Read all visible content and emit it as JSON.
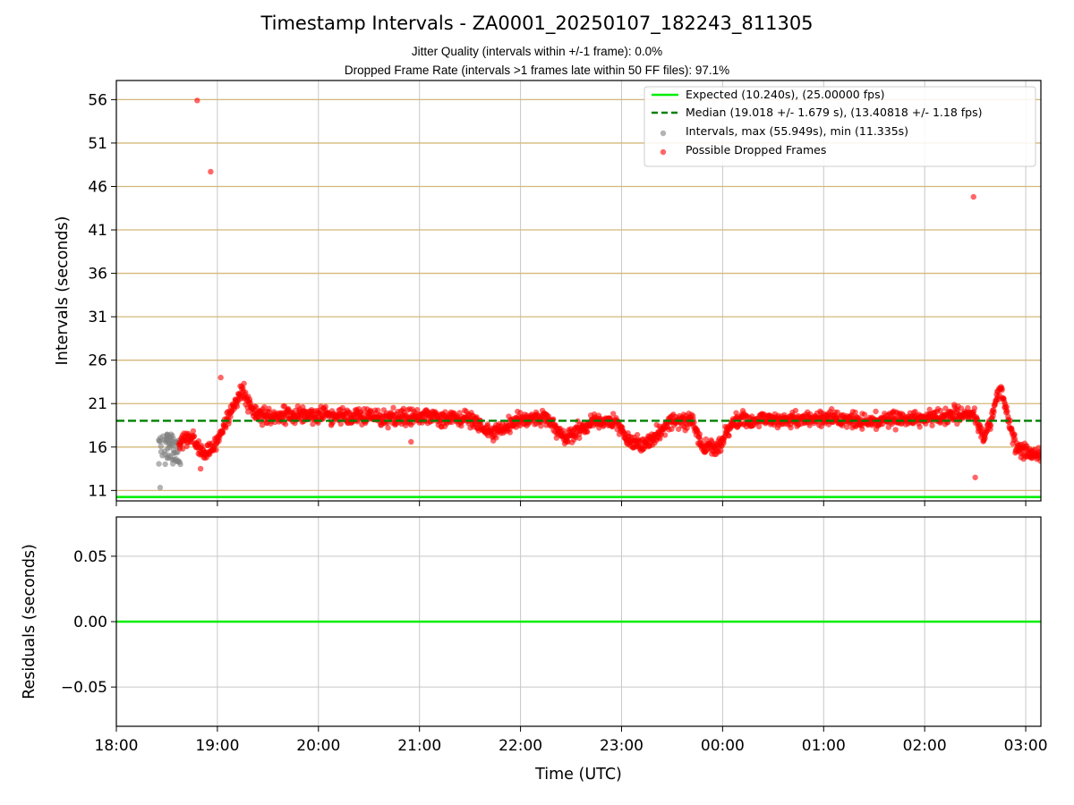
{
  "title": "Timestamp Intervals - ZA0001_20250107_182243_811305",
  "subtitle1": "Jitter Quality (intervals within +/-1 frame): 0.0%",
  "subtitle2": "Dropped Frame Rate (intervals >1 frames late within 50 FF files): 97.1%",
  "colors": {
    "expected": "#00ee00",
    "median": "#008000",
    "intervals": "#808080",
    "dropped": "#ff0000",
    "hgrid": "#d4b87a",
    "vgrid": "#c8c8c8"
  },
  "chart_data": [
    {
      "type": "scatter",
      "ylabel": "Intervals (seconds)",
      "xlim_hours": [
        18.0,
        27.15
      ],
      "ylim": [
        9.8,
        58.2
      ],
      "yticks": [
        11,
        16,
        21,
        26,
        31,
        36,
        41,
        46,
        51,
        56
      ],
      "xtick_hours": [
        18,
        19,
        20,
        21,
        22,
        23,
        24,
        25,
        26,
        27
      ],
      "xtick_labels": [
        "18:00",
        "19:00",
        "20:00",
        "21:00",
        "22:00",
        "23:00",
        "00:00",
        "01:00",
        "02:00",
        "03:00"
      ],
      "expected": 10.24,
      "median": 19.018,
      "legend": [
        "Expected (10.240s), (25.00000 fps)",
        "Median (19.018 +/- 1.679 s), (13.40818 +/- 1.18 fps)",
        "Intervals, max (55.949s), min (11.335s)",
        "Possible Dropped Frames"
      ],
      "intervals_max": 55.949,
      "intervals_min": 11.335,
      "gray_cluster": {
        "x_range": [
          "18:25",
          "18:38"
        ],
        "y_range": [
          11.3,
          17.8
        ]
      },
      "dropped_profile_hours": [
        18.62,
        18.75,
        18.85,
        18.95,
        19.05,
        19.15,
        19.25,
        19.35,
        19.5,
        20.0,
        20.5,
        21.0,
        21.5,
        21.65,
        21.8,
        22.0,
        22.3,
        22.45,
        22.7,
        22.95,
        23.05,
        23.2,
        23.35,
        23.5,
        23.7,
        23.8,
        23.95,
        24.1,
        24.5,
        25.0,
        25.5,
        26.0,
        26.35,
        26.5,
        26.58,
        26.66,
        26.75,
        26.9,
        27.15
      ],
      "dropped_profile_values": [
        16.5,
        17.0,
        15.2,
        15.5,
        18.0,
        20.5,
        22.5,
        20.0,
        19.5,
        19.7,
        19.4,
        19.5,
        19.2,
        18.0,
        17.8,
        19.3,
        19.0,
        17.0,
        18.9,
        19.0,
        16.8,
        16.0,
        17.5,
        19.0,
        19.0,
        16.0,
        15.8,
        19.0,
        19.2,
        19.3,
        19.0,
        19.4,
        19.8,
        19.6,
        17.0,
        19.5,
        23.0,
        16.0,
        15.0
      ],
      "dropped_outliers": [
        {
          "x": "18:48",
          "y": 55.9
        },
        {
          "x": "18:56",
          "y": 47.7
        },
        {
          "x": "18:50",
          "y": 13.5
        },
        {
          "x": "19:02",
          "y": 24.0
        },
        {
          "x": "02:29",
          "y": 44.8
        },
        {
          "x": "02:30",
          "y": 12.5
        },
        {
          "x": "20:55",
          "y": 16.6
        }
      ]
    },
    {
      "type": "line",
      "xlabel": "Time (UTC)",
      "ylabel": "Residuals (seconds)",
      "xlim_hours": [
        18.0,
        27.15
      ],
      "ylim": [
        -0.08,
        0.08
      ],
      "yticks": [
        0.05,
        0.0,
        -0.05
      ],
      "ytick_labels": [
        "0.05",
        "0.00",
        "−0.05"
      ],
      "residual_value": 0.0
    }
  ]
}
